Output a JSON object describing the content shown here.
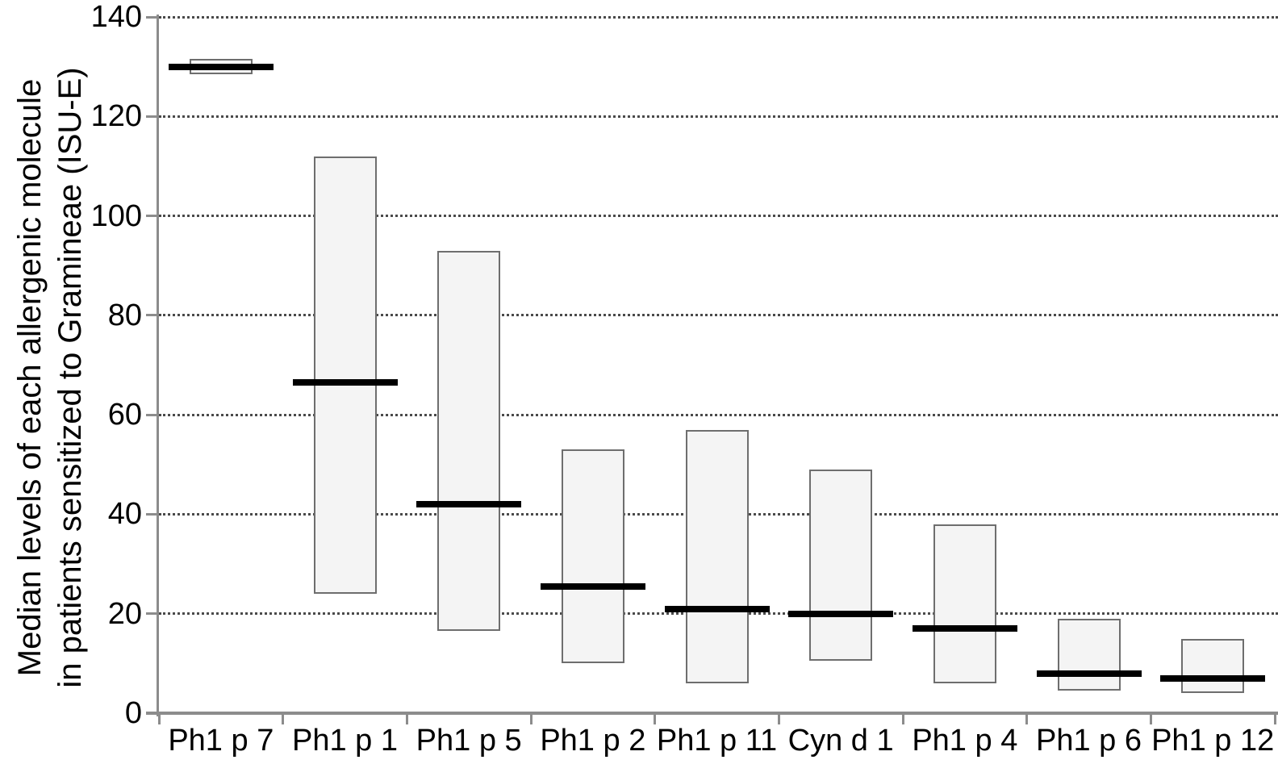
{
  "chart_data": {
    "type": "box",
    "title": "",
    "ylabel_line1": "Median levels of each allergenic molecule",
    "ylabel_line2": "in patients sensitized to Gramineae (ISU-E)",
    "xlabel": "",
    "ylim": [
      0,
      140
    ],
    "yticks": [
      0,
      20,
      40,
      60,
      80,
      100,
      120,
      140
    ],
    "grid": "horizontal dotted gridlines at each y tick, no vertical grid, no legend",
    "legend": "none",
    "categories": [
      "Ph1 p 7",
      "Ph1 p 1",
      "Ph1 p 5",
      "Ph1 p 2",
      "Ph1 p 11",
      "Cyn d 1",
      "Ph1 p 4",
      "Ph1 p 6",
      "Ph1 p 12"
    ],
    "series": [
      {
        "name": "Ph1 p 7",
        "box_low": 128.4,
        "box_high": 131.6,
        "median": 130
      },
      {
        "name": "Ph1 p 1",
        "box_low": 24,
        "box_high": 112,
        "median": 66.5
      },
      {
        "name": "Ph1 p 5",
        "box_low": 16.5,
        "box_high": 93,
        "median": 42
      },
      {
        "name": "Ph1 p 2",
        "box_low": 10,
        "box_high": 53,
        "median": 25.5
      },
      {
        "name": "Ph1 p 11",
        "box_low": 6,
        "box_high": 57,
        "median": 21
      },
      {
        "name": "Cyn d 1",
        "box_low": 10.5,
        "box_high": 49,
        "median": 20
      },
      {
        "name": "Ph1 p 4",
        "box_low": 6,
        "box_high": 38,
        "median": 17
      },
      {
        "name": "Ph1 p 6",
        "box_low": 4.5,
        "box_high": 19,
        "median": 8
      },
      {
        "name": "Ph1 p 12",
        "box_low": 4,
        "box_high": 15,
        "median": 7
      }
    ],
    "colors": {
      "background": "#ffffff",
      "box_fill": "#f4f4f4",
      "box_border": "#6e6e6e",
      "median": "#000000",
      "axis": "#8c8c8c",
      "grid": "#4a4a4a",
      "text": "#000000"
    }
  }
}
